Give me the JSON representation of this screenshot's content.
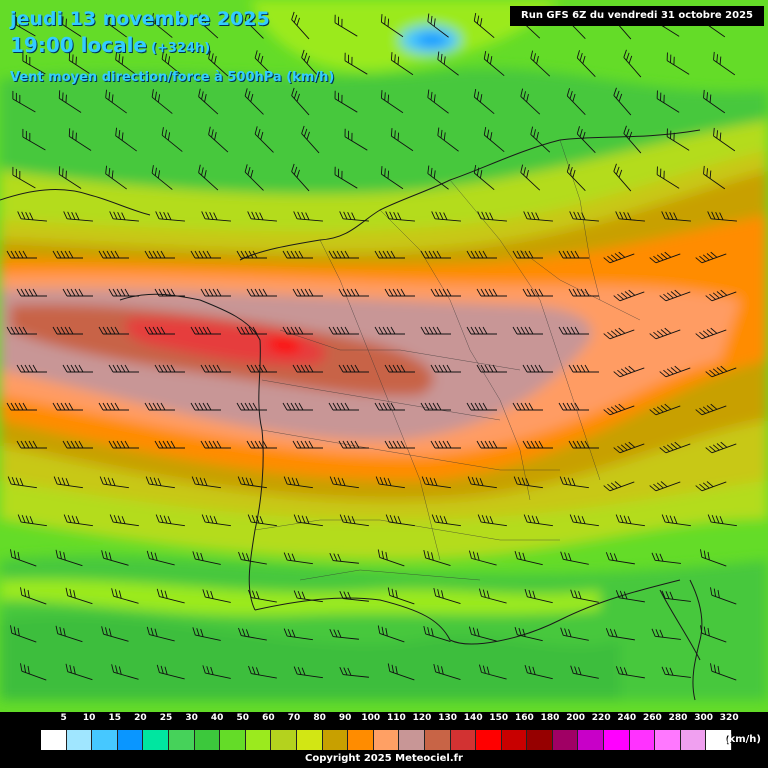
{
  "header": {
    "date": "jeudi 13 novembre 2025",
    "time": "19:00 locale",
    "forecast_hour": "(+324h)",
    "parameter": "Vent moyen direction/force à 500hPa (km/h)",
    "run_info": "Run GFS 6Z du vendredi 31 octobre 2025"
  },
  "legend": {
    "ticks": [
      "5",
      "10",
      "15",
      "20",
      "25",
      "30",
      "40",
      "50",
      "60",
      "70",
      "80",
      "90",
      "100",
      "110",
      "120",
      "130",
      "140",
      "150",
      "160",
      "180",
      "200",
      "220",
      "240",
      "260",
      "280",
      "300",
      "320"
    ],
    "colors": [
      "#ffffff",
      "#a0e6ff",
      "#46c8ff",
      "#0a96ff",
      "#00e6a0",
      "#46d25a",
      "#3cc83c",
      "#64dc28",
      "#9bea1e",
      "#b4d21e",
      "#d2e614",
      "#c8a000",
      "#ff8c00",
      "#ffa064",
      "#c89696",
      "#c86446",
      "#d23232",
      "#ff0000",
      "#c80000",
      "#960000",
      "#a00064",
      "#c800c8",
      "#ff00ff",
      "#ff32ff",
      "#ff78ff",
      "#f0a0f0",
      "#ffffff"
    ],
    "unit": "(km/h)"
  },
  "copyright": "Copyright 2025 Meteociel.fr",
  "map": {
    "region": "France / Western Europe",
    "wind_direction": "west-to-east",
    "colors": {
      "green_light": "#64dc28",
      "green": "#46c83c",
      "yellow_green": "#b4dc1e",
      "olive": "#c8b400",
      "orange": "#ff8c00",
      "salmon": "#ff9c64",
      "mauve": "#c89696",
      "brown_red": "#c86446",
      "red": "#e63c3c",
      "blue": "#46c8ff"
    }
  }
}
